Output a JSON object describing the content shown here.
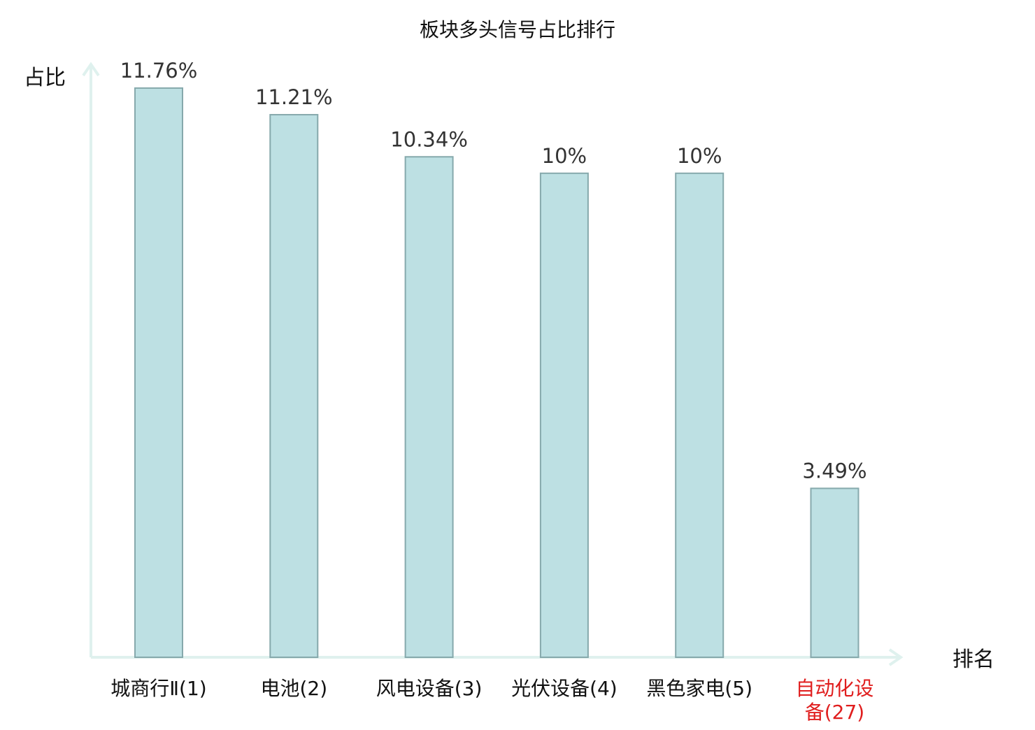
{
  "chart_data": {
    "type": "bar",
    "title": "板块多头信号占比排行",
    "ylabel": "占比",
    "xlabel": "排名",
    "categories": [
      "城商行Ⅱ(1)",
      "电池(2)",
      "风电设备(3)",
      "光伏设备(4)",
      "黑色家电(5)",
      "自动化设备(27)"
    ],
    "values": [
      11.76,
      11.21,
      10.34,
      10,
      10,
      3.49
    ],
    "value_labels": [
      "11.76%",
      "11.21%",
      "10.34%",
      "10%",
      "10%",
      "3.49%"
    ],
    "highlight_index": 5,
    "ylim": [
      0,
      12.2
    ],
    "grid": false,
    "legend": "none",
    "colors": {
      "bar_fill": "#bde0e3",
      "bar_stroke": "#86a9ac",
      "axis": "#dff1ee",
      "label_text": "#333333",
      "tick_text": "#111111",
      "highlight_text": "#e01e1e"
    }
  }
}
